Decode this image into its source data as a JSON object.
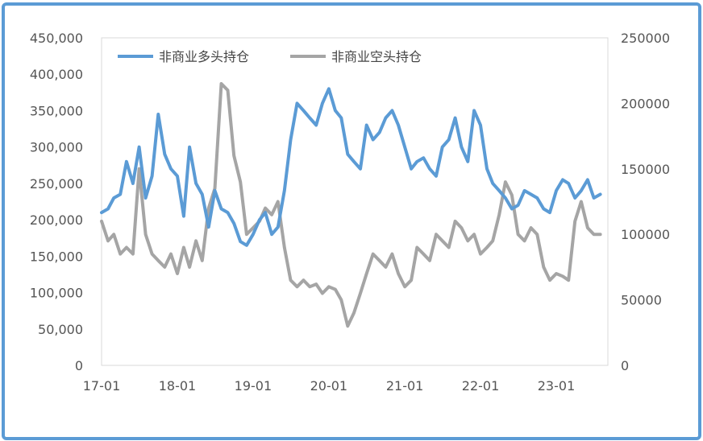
{
  "chart_data": {
    "type": "line",
    "legend": {
      "position": "top-left"
    },
    "x_ticks": [
      "17-01",
      "18-01",
      "19-01",
      "20-01",
      "21-01",
      "22-01",
      "23-01"
    ],
    "y_left": {
      "ticks": [
        "450,000",
        "400,000",
        "350,000",
        "300,000",
        "250,000",
        "200,000",
        "150,000",
        "100,000",
        "50,000",
        "0"
      ],
      "ylim": [
        0,
        450000
      ]
    },
    "y_right": {
      "ticks": [
        "250000",
        "200000",
        "150000",
        "100000",
        "50000",
        "0"
      ],
      "ylim": [
        0,
        250000
      ]
    },
    "grid": false,
    "series": [
      {
        "name": "非商业多头持仓",
        "axis": "left",
        "color": "#5b9bd5",
        "x": [
          "2017-01",
          "2017-02",
          "2017-03",
          "2017-04",
          "2017-05",
          "2017-06",
          "2017-07",
          "2017-08",
          "2017-09",
          "2017-10",
          "2017-11",
          "2017-12",
          "2018-01",
          "2018-02",
          "2018-03",
          "2018-04",
          "2018-05",
          "2018-06",
          "2018-07",
          "2018-08",
          "2018-09",
          "2018-10",
          "2018-11",
          "2018-12",
          "2019-01",
          "2019-02",
          "2019-03",
          "2019-04",
          "2019-05",
          "2019-06",
          "2019-07",
          "2019-08",
          "2019-09",
          "2019-10",
          "2019-11",
          "2019-12",
          "2020-01",
          "2020-02",
          "2020-03",
          "2020-04",
          "2020-05",
          "2020-06",
          "2020-07",
          "2020-08",
          "2020-09",
          "2020-10",
          "2020-11",
          "2020-12",
          "2021-01",
          "2021-02",
          "2021-03",
          "2021-04",
          "2021-05",
          "2021-06",
          "2021-07",
          "2021-08",
          "2021-09",
          "2021-10",
          "2021-11",
          "2021-12",
          "2022-01",
          "2022-02",
          "2022-03",
          "2022-04",
          "2022-05",
          "2022-06",
          "2022-07",
          "2022-08",
          "2022-09",
          "2022-10",
          "2022-11",
          "2022-12",
          "2023-01",
          "2023-02",
          "2023-03",
          "2023-04",
          "2023-05",
          "2023-06",
          "2023-07",
          "2023-08"
        ],
        "values": [
          210000,
          215000,
          230000,
          235000,
          280000,
          250000,
          300000,
          230000,
          260000,
          345000,
          290000,
          270000,
          260000,
          205000,
          300000,
          250000,
          235000,
          190000,
          240000,
          215000,
          210000,
          195000,
          170000,
          165000,
          180000,
          200000,
          210000,
          180000,
          190000,
          240000,
          310000,
          360000,
          350000,
          340000,
          330000,
          360000,
          380000,
          350000,
          340000,
          290000,
          280000,
          270000,
          330000,
          310000,
          320000,
          340000,
          350000,
          330000,
          300000,
          270000,
          280000,
          285000,
          270000,
          260000,
          300000,
          310000,
          340000,
          300000,
          280000,
          350000,
          330000,
          270000,
          250000,
          240000,
          230000,
          215000,
          220000,
          240000,
          235000,
          230000,
          215000,
          210000,
          240000,
          255000,
          250000,
          230000,
          240000,
          255000,
          230000,
          235000
        ]
      },
      {
        "name": "非商业空头持仓",
        "axis": "right",
        "color": "#a5a5a5",
        "x": [
          "2017-01",
          "2017-02",
          "2017-03",
          "2017-04",
          "2017-05",
          "2017-06",
          "2017-07",
          "2017-08",
          "2017-09",
          "2017-10",
          "2017-11",
          "2017-12",
          "2018-01",
          "2018-02",
          "2018-03",
          "2018-04",
          "2018-05",
          "2018-06",
          "2018-07",
          "2018-08",
          "2018-09",
          "2018-10",
          "2018-11",
          "2018-12",
          "2019-01",
          "2019-02",
          "2019-03",
          "2019-04",
          "2019-05",
          "2019-06",
          "2019-07",
          "2019-08",
          "2019-09",
          "2019-10",
          "2019-11",
          "2019-12",
          "2020-01",
          "2020-02",
          "2020-03",
          "2020-04",
          "2020-05",
          "2020-06",
          "2020-07",
          "2020-08",
          "2020-09",
          "2020-10",
          "2020-11",
          "2020-12",
          "2021-01",
          "2021-02",
          "2021-03",
          "2021-04",
          "2021-05",
          "2021-06",
          "2021-07",
          "2021-08",
          "2021-09",
          "2021-10",
          "2021-11",
          "2021-12",
          "2022-01",
          "2022-02",
          "2022-03",
          "2022-04",
          "2022-05",
          "2022-06",
          "2022-07",
          "2022-08",
          "2022-09",
          "2022-10",
          "2022-11",
          "2022-12",
          "2023-01",
          "2023-02",
          "2023-03",
          "2023-04",
          "2023-05",
          "2023-06",
          "2023-07",
          "2023-08"
        ],
        "values": [
          110000,
          95000,
          100000,
          85000,
          90000,
          85000,
          150000,
          100000,
          85000,
          80000,
          75000,
          85000,
          70000,
          90000,
          75000,
          95000,
          80000,
          120000,
          135000,
          215000,
          210000,
          160000,
          140000,
          100000,
          105000,
          110000,
          120000,
          115000,
          125000,
          90000,
          65000,
          60000,
          65000,
          60000,
          62000,
          55000,
          60000,
          58000,
          50000,
          30000,
          40000,
          55000,
          70000,
          85000,
          80000,
          75000,
          85000,
          70000,
          60000,
          65000,
          90000,
          85000,
          80000,
          100000,
          95000,
          90000,
          110000,
          105000,
          95000,
          100000,
          85000,
          90000,
          95000,
          115000,
          140000,
          130000,
          100000,
          95000,
          105000,
          100000,
          75000,
          65000,
          70000,
          68000,
          65000,
          110000,
          125000,
          105000,
          100000,
          100000
        ]
      }
    ]
  }
}
